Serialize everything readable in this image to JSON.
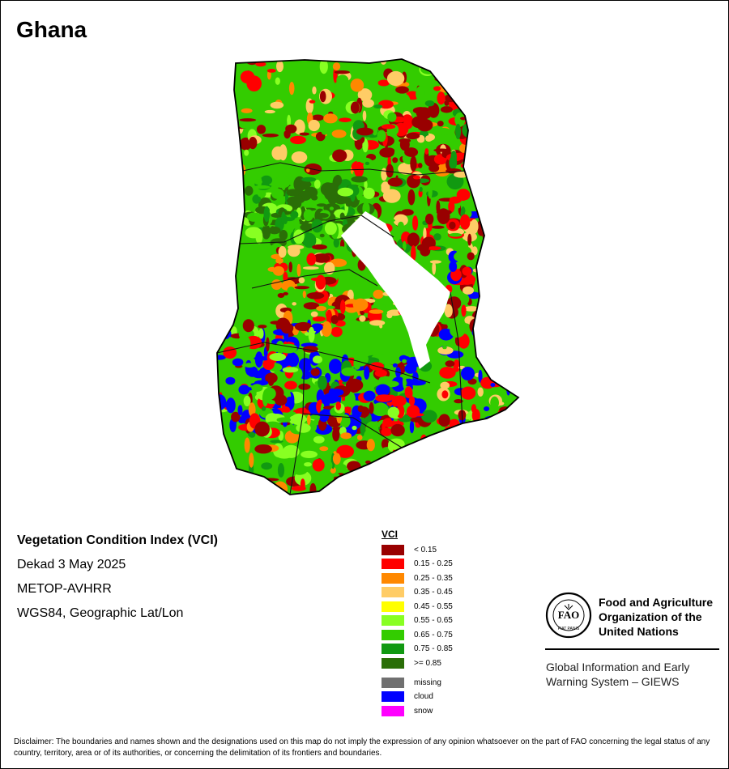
{
  "map_title": "Ghana",
  "info": {
    "title": "Vegetation Condition Index (VCI)",
    "date": "Dekad 3 May 2025",
    "sensor": "METOP-AVHRR",
    "projection": "WGS84, Geographic Lat/Lon"
  },
  "legend": {
    "title": "VCI",
    "classes": [
      {
        "label": "< 0.15",
        "color": "#990000"
      },
      {
        "label": "0.15 - 0.25",
        "color": "#ff0000"
      },
      {
        "label": "0.25 - 0.35",
        "color": "#ff8800"
      },
      {
        "label": "0.35 - 0.45",
        "color": "#ffcc66"
      },
      {
        "label": "0.45 - 0.55",
        "color": "#ffff00"
      },
      {
        "label": "0.55 - 0.65",
        "color": "#88ff22"
      },
      {
        "label": "0.65 - 0.75",
        "color": "#33cc00"
      },
      {
        "label": "0.75 - 0.85",
        "color": "#119911"
      },
      {
        "label": ">= 0.85",
        "color": "#2a6e07"
      }
    ],
    "special": [
      {
        "label": "missing",
        "color": "#707070"
      },
      {
        "label": "cloud",
        "color": "#0000ff"
      },
      {
        "label": "snow",
        "color": "#ff00ff"
      }
    ]
  },
  "organization": {
    "logo_text": "FAO",
    "logo_motto": "FIAT PANIS",
    "name_lines": [
      "Food and Agriculture",
      "Organization of the",
      "United Nations"
    ],
    "system_lines": [
      "Global Information and Early",
      "Warning System – GIEWS"
    ]
  },
  "disclaimer": "Disclaimer: The boundaries and names shown and the designations used on this map do not imply the expression of any opinion whatsoever on the part of FAO concerning the legal status of any country, territory, area or of its authorities, or concerning the delimitation of its frontiers and boundaries."
}
